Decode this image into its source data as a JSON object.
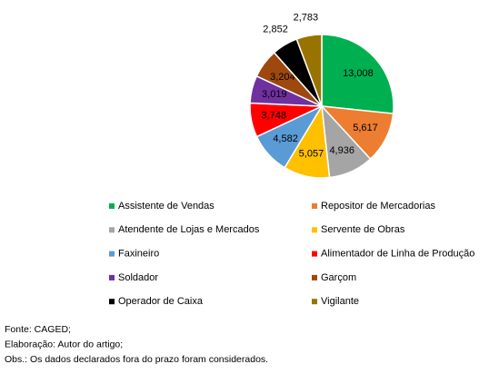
{
  "chart_data": {
    "type": "pie",
    "categories": [
      "Assistente de Vendas",
      "Repositor de Mercadorias",
      "Atendente de Lojas e Mercados",
      "Servente de Obras",
      "Faxineiro",
      "Alimentador de Linha de Produção",
      "Soldador",
      "Garçom",
      "Operador de Caixa",
      "Vigilante"
    ],
    "values": [
      13008,
      5617,
      4936,
      5057,
      4582,
      3748,
      3019,
      3204,
      2852,
      2783
    ],
    "value_labels": [
      "13,008",
      "5,617",
      "4,936",
      "5,057",
      "4,582",
      "3,748",
      "3,019",
      "3,204",
      "2,852",
      "2,783"
    ],
    "colors": [
      "#00b050",
      "#ed7d31",
      "#a5a5a5",
      "#ffc000",
      "#5b9bd5",
      "#ff0000",
      "#7030a0",
      "#9e480e",
      "#000000",
      "#997300"
    ],
    "legend": "bottom",
    "notes": [
      "Fonte: CAGED;",
      "Elaboração: Autor do artigo;",
      "Obs.: Os dados declarados fora do prazo foram considerados."
    ]
  }
}
